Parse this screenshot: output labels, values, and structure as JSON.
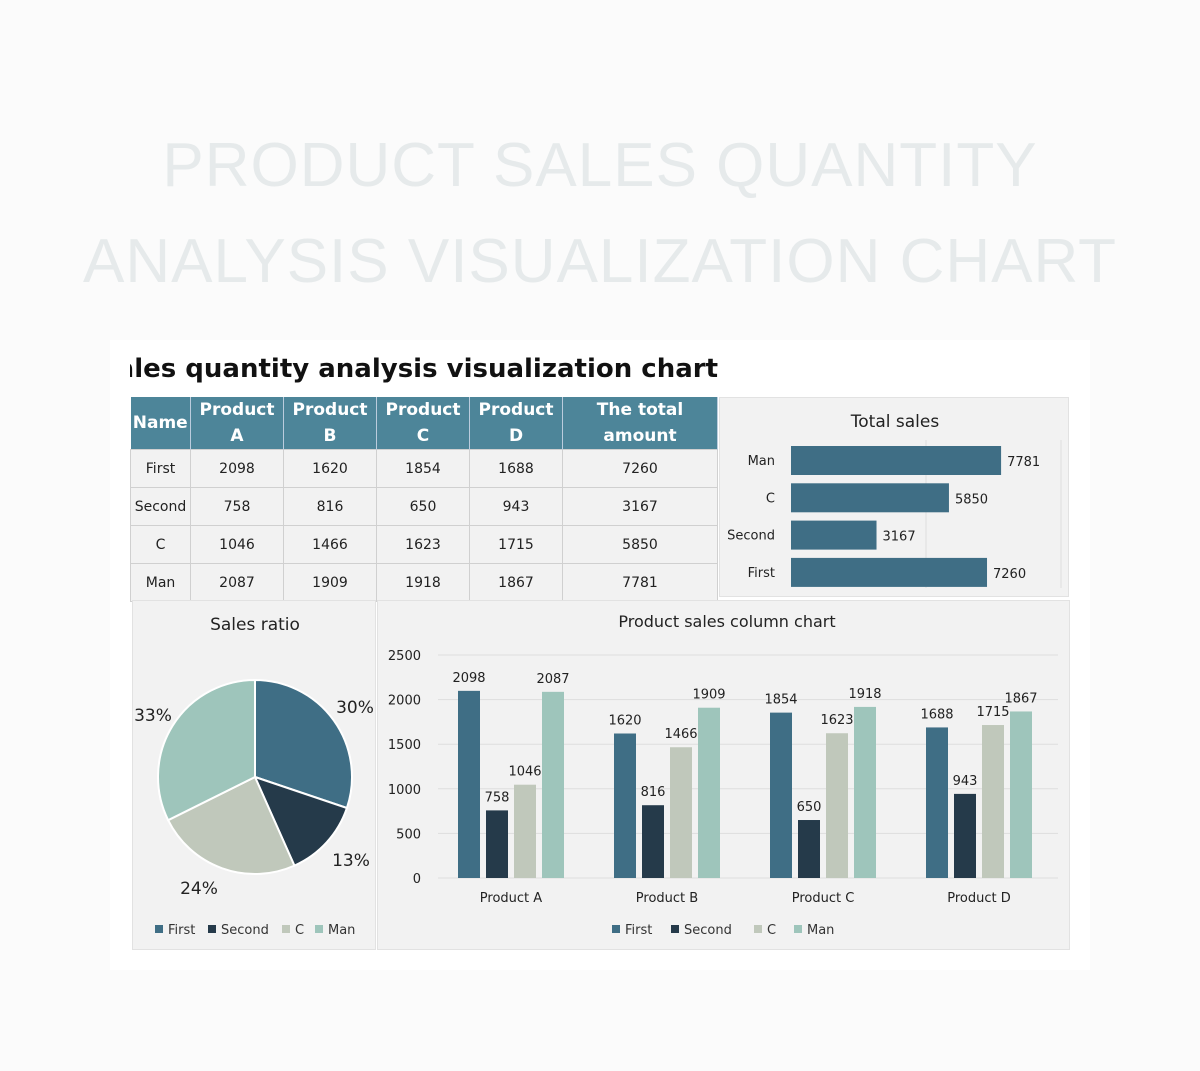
{
  "page_title": [
    "PRODUCT SALES QUANTITY",
    "ANALYSIS VISUALIZATION CHART"
  ],
  "sheet_title": "Product sales quantity analysis visualization chart",
  "colors": {
    "header": "#4d8599",
    "First": "#3f6e85",
    "Second": "#253a4a",
    "C": "#c0c8bb",
    "Man": "#9ec5bb"
  },
  "table": {
    "headers": [
      "Name",
      "Product A",
      "Product B",
      "Product C",
      "Product D",
      "The total amount"
    ],
    "rows": [
      [
        "First",
        "2098",
        "1620",
        "1854",
        "1688",
        "7260"
      ],
      [
        "Second",
        "758",
        "816",
        "650",
        "943",
        "3167"
      ],
      [
        "C",
        "1046",
        "1466",
        "1623",
        "1715",
        "5850"
      ],
      [
        "Man",
        "2087",
        "1909",
        "1918",
        "1867",
        "7781"
      ]
    ]
  },
  "chart_data": [
    {
      "type": "bar",
      "orientation": "horizontal",
      "title": "Total sales",
      "categories": [
        "Man",
        "C",
        "Second",
        "First"
      ],
      "values": [
        7781,
        5850,
        3167,
        7260
      ],
      "xlim": [
        0,
        10000
      ],
      "grid": true,
      "data_labels": true
    },
    {
      "type": "pie",
      "title": "Sales ratio",
      "categories": [
        "First",
        "Second",
        "C",
        "Man"
      ],
      "values": [
        7260,
        3167,
        5850,
        7781
      ],
      "labels": [
        "30%",
        "13%",
        "24%",
        "33%"
      ],
      "legend": "bottom"
    },
    {
      "type": "bar",
      "title": "Product sales column chart",
      "categories": [
        "Product A",
        "Product B",
        "Product C",
        "Product D"
      ],
      "series": [
        {
          "name": "First",
          "values": [
            2098,
            1620,
            1854,
            1688
          ]
        },
        {
          "name": "Second",
          "values": [
            758,
            816,
            650,
            943
          ]
        },
        {
          "name": "C",
          "values": [
            1046,
            1466,
            1623,
            1715
          ]
        },
        {
          "name": "Man",
          "values": [
            2087,
            1909,
            1918,
            1867
          ]
        }
      ],
      "ylim": [
        0,
        2500
      ],
      "yticks": [
        "0",
        "500",
        "1000",
        "1500",
        "2000",
        "2500"
      ],
      "grid": true,
      "legend": "bottom",
      "data_labels": true
    }
  ]
}
